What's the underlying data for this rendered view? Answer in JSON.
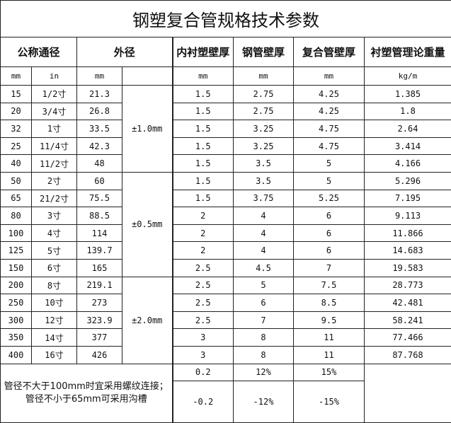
{
  "title": "钢塑复合管规格技术参数",
  "headers": {
    "nominal": "公称通径",
    "outer": "外径",
    "lining": "内衬塑壁厚",
    "steel": "钢管壁厚",
    "composite": "复合管壁厚",
    "weight": "衬塑管理论重量"
  },
  "units": {
    "mm": "mm",
    "in": "in",
    "od": "mm",
    "lining": "mm",
    "steel": "mm",
    "composite": "mm",
    "weight": "kg/m"
  },
  "tolerances": [
    "±1.0mm",
    "±0.5mm",
    "±2.0mm"
  ],
  "rows": [
    [
      "15",
      "1/2寸",
      "21.3",
      "1.5",
      "2.75",
      "4.25",
      "1.385"
    ],
    [
      "20",
      "3/4寸",
      "26.8",
      "1.5",
      "2.75",
      "4.25",
      "1.8"
    ],
    [
      "32",
      "1寸",
      "33.5",
      "1.5",
      "3.25",
      "4.75",
      "2.64"
    ],
    [
      "25",
      "11/4寸",
      "42.3",
      "1.5",
      "3.25",
      "4.75",
      "3.414"
    ],
    [
      "40",
      "11/2寸",
      "48",
      "1.5",
      "3.5",
      "5",
      "4.166"
    ],
    [
      "50",
      "2寸",
      "60",
      "1.5",
      "3.5",
      "5",
      "5.296"
    ],
    [
      "65",
      "21/2寸",
      "75.5",
      "1.5",
      "3.75",
      "5.25",
      "7.195"
    ],
    [
      "80",
      "3寸",
      "88.5",
      "2",
      "4",
      "6",
      "9.113"
    ],
    [
      "100",
      "4寸",
      "114",
      "2",
      "4",
      "6",
      "11.866"
    ],
    [
      "125",
      "5寸",
      "139.7",
      "2",
      "4",
      "6",
      "14.683"
    ],
    [
      "150",
      "6寸",
      "165",
      "2.5",
      "4.5",
      "7",
      "19.583"
    ],
    [
      "200",
      "8寸",
      "219.1",
      "2.5",
      "5",
      "7.5",
      "28.773"
    ],
    [
      "250",
      "10寸",
      "273",
      "2.5",
      "6",
      "8.5",
      "42.481"
    ],
    [
      "300",
      "12寸",
      "323.9",
      "2.5",
      "7",
      "9.5",
      "58.241"
    ],
    [
      "350",
      "14寸",
      "377",
      "3",
      "8",
      "11",
      "77.466"
    ],
    [
      "400",
      "16寸",
      "426",
      "3",
      "8",
      "11",
      "87.768"
    ]
  ],
  "footer": {
    "note": "管径不大于100mm时宜采用螺纹连接；管径不小于65mm可采用沟槽",
    "plus": [
      "0.2",
      "12%",
      "15%"
    ],
    "minus": [
      "-0.2",
      "-12%",
      "-15%"
    ]
  }
}
